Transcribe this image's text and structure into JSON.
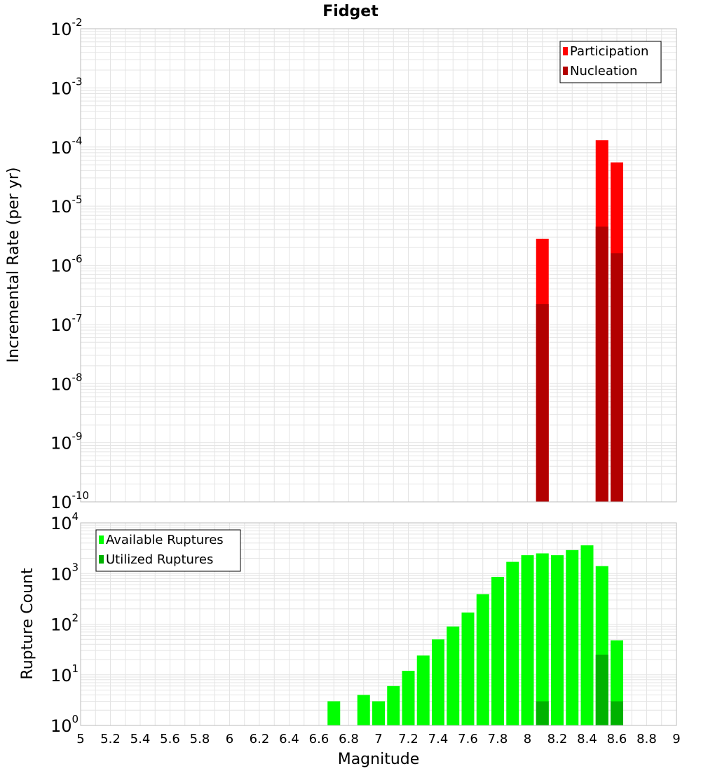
{
  "colors": {
    "participation": "#ff0000",
    "nucleation": "#b20000",
    "available": "#00ff00",
    "utilized": "#00b200",
    "grid": "#e4e4e4",
    "frame": "#bbbbbb"
  },
  "chart_data": [
    {
      "type": "bar",
      "title": "Fidget",
      "ylabel": "Incremental Rate (per yr)",
      "yscale": "log",
      "ylim": [
        1e-10,
        0.01
      ],
      "xlim": [
        5,
        9
      ],
      "ytick_exponents": [
        -10,
        -9,
        -8,
        -7,
        -6,
        -5,
        -4,
        -3,
        -2
      ],
      "legend": {
        "position": "top-right",
        "entries": [
          "Participation",
          "Nucleation"
        ]
      },
      "series": [
        {
          "name": "Participation",
          "x": [
            8.1,
            8.5,
            8.6
          ],
          "values": [
            2.8e-06,
            0.00013,
            5.5e-05
          ]
        },
        {
          "name": "Nucleation",
          "x": [
            8.1,
            8.5,
            8.6
          ],
          "values": [
            2.2e-07,
            4.5e-06,
            1.6e-06
          ]
        }
      ]
    },
    {
      "type": "bar",
      "ylabel": "Rupture Count",
      "xlabel": "Magnitude",
      "yscale": "log",
      "ylim": [
        1,
        10000
      ],
      "xlim": [
        5,
        9
      ],
      "xticks": [
        "5",
        "5.2",
        "5.4",
        "5.6",
        "5.8",
        "6",
        "6.2",
        "6.4",
        "6.6",
        "6.8",
        "7",
        "7.2",
        "7.4",
        "7.6",
        "7.8",
        "8",
        "8.2",
        "8.4",
        "8.6",
        "8.8",
        "9"
      ],
      "ytick_exponents": [
        0,
        1,
        2,
        3,
        4
      ],
      "legend": {
        "position": "top-left",
        "entries": [
          "Available Ruptures",
          "Utilized Ruptures"
        ]
      },
      "series": [
        {
          "name": "Available Ruptures",
          "x": [
            6.7,
            6.9,
            7.0,
            7.1,
            7.2,
            7.3,
            7.4,
            7.5,
            7.6,
            7.7,
            7.8,
            7.9,
            8.0,
            8.1,
            8.2,
            8.3,
            8.4,
            8.5,
            8.6
          ],
          "values": [
            3,
            4,
            3,
            6,
            12,
            24,
            50,
            90,
            170,
            390,
            860,
            1700,
            2300,
            2500,
            2300,
            2900,
            3600,
            1400,
            48
          ]
        },
        {
          "name": "Utilized Ruptures",
          "x": [
            8.1,
            8.5,
            8.6
          ],
          "values": [
            3,
            25,
            3
          ]
        }
      ]
    }
  ]
}
